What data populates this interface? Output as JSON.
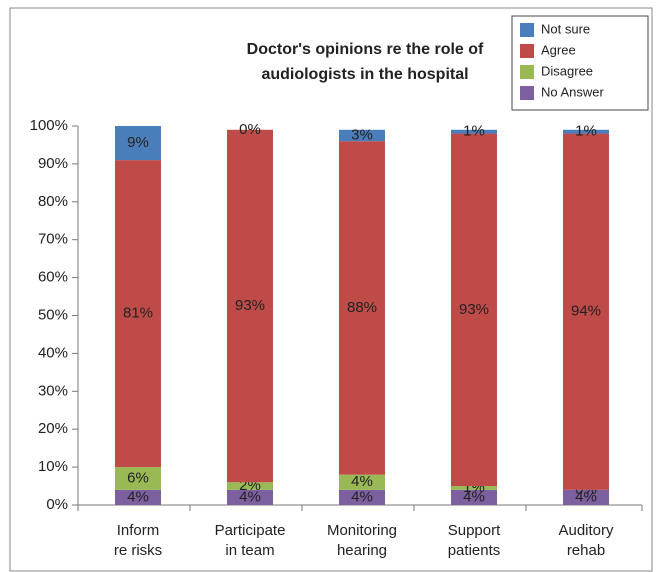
{
  "chart_data": {
    "type": "stacked_bar",
    "title": [
      "Doctor's opinions re the role of",
      "audiologists in the hospital"
    ],
    "categories": [
      [
        "Inform",
        "re risks"
      ],
      [
        "Participate",
        "in team"
      ],
      [
        "Monitoring",
        "hearing"
      ],
      [
        "Support",
        "patients"
      ],
      [
        "Auditory",
        "rehab"
      ]
    ],
    "series": [
      {
        "name": "No Answer",
        "color": "#7d60a0",
        "values": [
          4,
          4,
          4,
          4,
          4
        ],
        "value_labels": [
          "4%",
          "4%",
          "4%",
          "4%",
          "4%"
        ]
      },
      {
        "name": "Disagree",
        "color": "#98b954",
        "values": [
          6,
          2,
          4,
          1,
          0
        ],
        "value_labels": [
          "6%",
          "2%",
          "4%",
          "1%",
          "0%"
        ]
      },
      {
        "name": "Agree",
        "color": "#be4b48",
        "values": [
          81,
          93,
          88,
          93,
          94
        ],
        "value_labels": [
          "81%",
          "93%",
          "88%",
          "93%",
          "94%"
        ]
      },
      {
        "name": "Not sure",
        "color": "#4a7ebb",
        "values": [
          9,
          0,
          3,
          1,
          1
        ],
        "value_labels": [
          "9%",
          "0%",
          "3%",
          "1%",
          "1%"
        ]
      }
    ],
    "ylim": [
      0,
      100
    ],
    "yticks": [
      {
        "value": 0,
        "label": "0%"
      },
      {
        "value": 10,
        "label": "10%"
      },
      {
        "value": 20,
        "label": "20%"
      },
      {
        "value": 30,
        "label": "30%"
      },
      {
        "value": 40,
        "label": "40%"
      },
      {
        "value": 50,
        "label": "50%"
      },
      {
        "value": 60,
        "label": "60%"
      },
      {
        "value": 70,
        "label": "70%"
      },
      {
        "value": 80,
        "label": "80%"
      },
      {
        "value": 90,
        "label": "90%"
      },
      {
        "value": 100,
        "label": "100%"
      }
    ],
    "legend": "top-right",
    "grid": false
  }
}
